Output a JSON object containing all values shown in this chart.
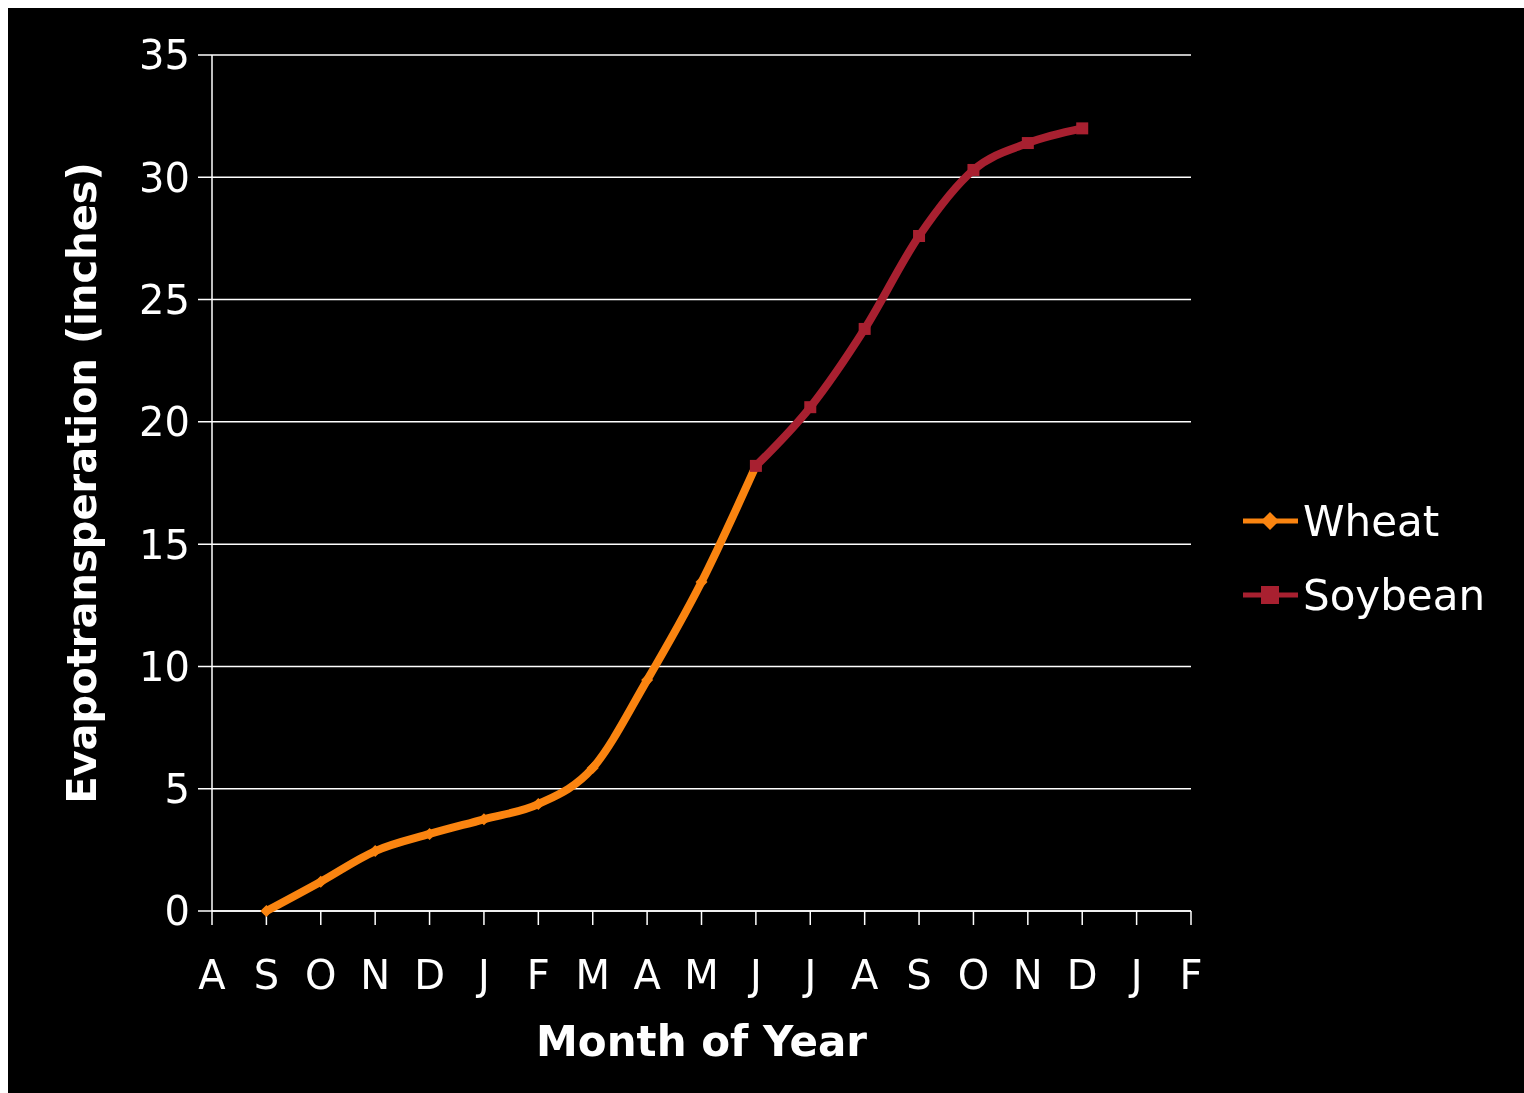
{
  "chart_data": {
    "type": "line",
    "xlabel": "Month of Year",
    "ylabel": "Evapotransperation (inches)",
    "categories": [
      "A",
      "S",
      "O",
      "N",
      "D",
      "J",
      "F",
      "M",
      "A",
      "M",
      "J",
      "J",
      "A",
      "S",
      "O",
      "N",
      "D",
      "J",
      "F"
    ],
    "ylim": [
      0,
      35
    ],
    "yticks": [
      0,
      5,
      10,
      15,
      20,
      25,
      30,
      35
    ],
    "grid": "y",
    "legend": "right",
    "series": [
      {
        "name": "Wheat",
        "color": "#fa8410",
        "marker": "diamond",
        "values": [
          null,
          0,
          1.2,
          2.45,
          3.15,
          3.75,
          4.37,
          5.85,
          9.44,
          13.45,
          18.2,
          null,
          null,
          null,
          null,
          null,
          null,
          null,
          null
        ]
      },
      {
        "name": "Soybean",
        "color": "#a82030",
        "marker": "square",
        "values": [
          null,
          null,
          null,
          null,
          null,
          null,
          null,
          null,
          null,
          null,
          18.2,
          20.6,
          23.8,
          27.6,
          30.3,
          31.4,
          32.0,
          null,
          null
        ]
      }
    ]
  }
}
